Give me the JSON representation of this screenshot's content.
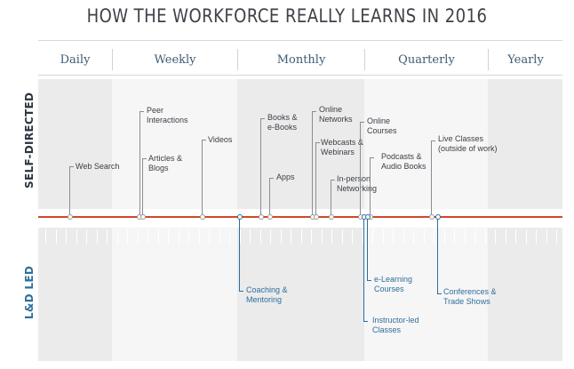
{
  "title": "HOW THE WORKFORCE REALLY LEARNS IN 2016",
  "columns": [
    "Daily",
    "Weekly",
    "Monthly",
    "Quarterly",
    "Yearly"
  ],
  "sides": {
    "top": "SELF-DIRECTED",
    "bottom": "L&D LED"
  },
  "colors": {
    "axis": "#d0482a",
    "self_directed": "#2b3340",
    "ld_led": "#2e6e9a",
    "band_dark": "#ebebec",
    "band_light": "#f6f6f7"
  },
  "self_directed": [
    "Web Search",
    "Peer\nInteractions",
    "Articles &\nBlogs",
    "Videos",
    "Books &\ne-Books",
    "Apps",
    "Online\nNetworks",
    "Webcasts &\nWebinars",
    "In-person\nNetworking",
    "Online\nCourses",
    "Podcasts &\nAudio Books",
    "Live Classes\n(outside of work)"
  ],
  "ld_led": [
    "Coaching &\nMentoring",
    "e-Learning\nCourses",
    "Instructor-led\nClasses",
    "Conferences &\nTrade Shows"
  ]
}
